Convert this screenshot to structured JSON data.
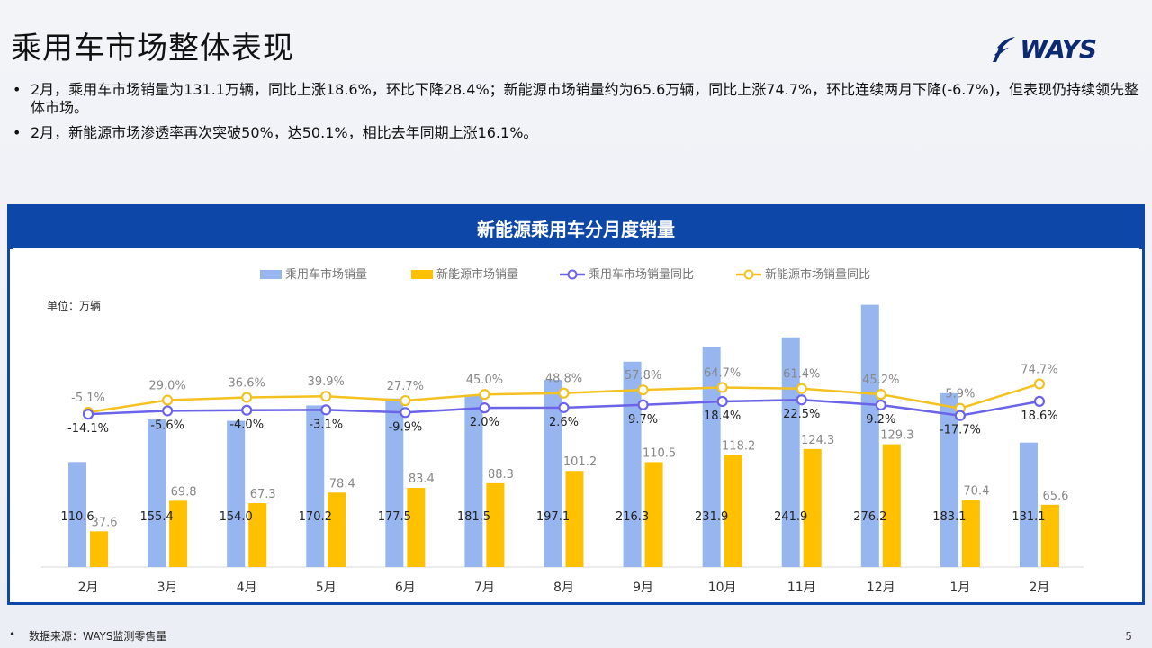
{
  "page": {
    "title": "乘用车市场整体表现",
    "logo_text": "WAYS",
    "bullets": [
      "2月，乘用车市场销量为131.1万辆，同比上涨18.6%，环比下降28.4%；新能源市场销量约为65.6万辆，同比上涨74.7%，环比连续两月下降(-6.7%)，但表现仍持续领先整体市场。",
      "2月，新能源市场渗透率再次突破50%，达50.1%，相比去年同期上涨16.1%。"
    ],
    "footer_source": "数据来源：WAYS监测零售量",
    "page_number": "5"
  },
  "chart_data": {
    "type": "bar",
    "title": "新能源乘用车分月度销量",
    "unit_label": "单位：万辆",
    "categories": [
      "2月",
      "3月",
      "4月",
      "5月",
      "6月",
      "7月",
      "8月",
      "9月",
      "10月",
      "11月",
      "12月",
      "1月",
      "2月"
    ],
    "series": [
      {
        "name": "乘用车市场销量",
        "kind": "bar",
        "color": "#97b6ef",
        "values": [
          110.6,
          155.4,
          154.0,
          170.2,
          177.5,
          181.5,
          197.1,
          216.3,
          231.9,
          241.9,
          276.2,
          183.1,
          131.1
        ]
      },
      {
        "name": "新能源市场销量",
        "kind": "bar",
        "color": "#ffc000",
        "values": [
          37.6,
          69.8,
          67.3,
          78.4,
          83.4,
          88.3,
          101.2,
          110.5,
          118.2,
          124.3,
          129.3,
          70.4,
          65.6
        ]
      },
      {
        "name": "乘用车市场销量同比",
        "kind": "line",
        "color": "#6b63e8",
        "values": [
          -14.1,
          -5.6,
          -4.0,
          -3.1,
          -9.9,
          2.0,
          2.6,
          9.7,
          18.4,
          22.5,
          9.2,
          -17.7,
          18.6
        ],
        "labels": [
          "-14.1%",
          "-5.6%",
          "-4.0%",
          "-3.1%",
          "-9.9%",
          "2.0%",
          "2.6%",
          "9.7%",
          "18.4%",
          "22.5%",
          "9.2%",
          "-17.7%",
          "18.6%"
        ]
      },
      {
        "name": "新能源市场销量同比",
        "kind": "line",
        "color": "#f4c220",
        "values": [
          -5.1,
          29.0,
          36.6,
          39.9,
          27.7,
          45.0,
          48.8,
          57.8,
          64.7,
          61.4,
          45.2,
          5.9,
          74.7
        ],
        "labels": [
          "-5.1%",
          "29.0%",
          "36.6%",
          "39.9%",
          "27.7%",
          "45.0%",
          "48.8%",
          "57.8%",
          "64.7%",
          "61.4%",
          "45.2%",
          "5.9%",
          "74.7%"
        ]
      }
    ],
    "legend_position": "top-center",
    "grid": false
  }
}
